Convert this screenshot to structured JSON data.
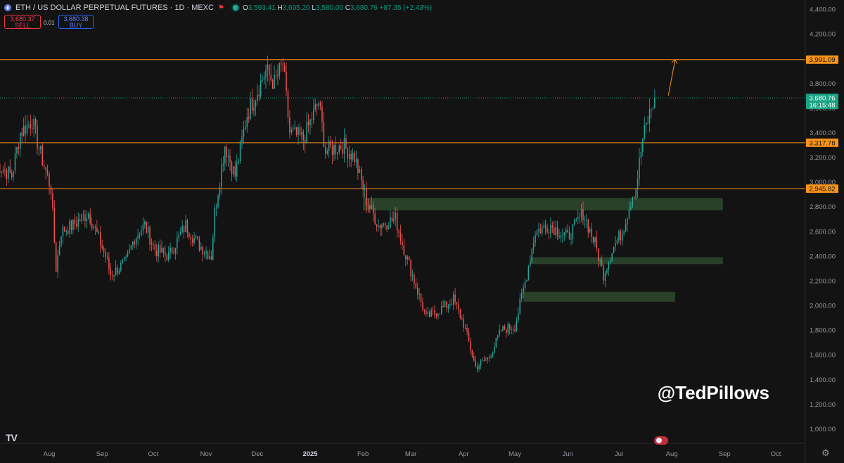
{
  "header": {
    "symbol": "ETH / US DOLLAR PERPETUAL FUTURES · 1D · MEXC",
    "ohlc": {
      "o_label": "O",
      "o": "3,593.41",
      "h_label": "H",
      "h": "3,695.20",
      "l_label": "L",
      "l": "3,580.00",
      "c_label": "C",
      "c": "3,680.76",
      "change": "+87.35 (+2.43%)"
    },
    "sell_price": "3,680.37",
    "sell_label": "SELL",
    "spread": "0.01",
    "buy_price": "3,680.38",
    "buy_label": "BUY"
  },
  "watermark": "@TedPillows",
  "tv_logo": "TV",
  "colors": {
    "up": "#26a69a",
    "down": "#ef5350",
    "hline": "#f7931a",
    "zone": "#2d4a2d",
    "price_badge": "#1aa383",
    "level_badge": "#f7931a"
  },
  "chart_data": {
    "type": "candlestick",
    "timeframe": "1D",
    "ylim": [
      900,
      4450
    ],
    "y_ticks": [
      "4,400.00",
      "4,200.00",
      "4,000.00",
      "3,800.00",
      "3,600.00",
      "3,400.00",
      "3,200.00",
      "3,000.00",
      "2,800.00",
      "2,600.00",
      "2,400.00",
      "2,200.00",
      "2,000.00",
      "1,800.00",
      "1,600.00",
      "1,400.00",
      "1,200.00",
      "1,000.00"
    ],
    "x_ticks": [
      "Aug",
      "Sep",
      "Oct",
      "Nov",
      "Dec",
      "2025",
      "Feb",
      "Mar",
      "Apr",
      "May",
      "Jun",
      "Jul",
      "Aug",
      "Sep",
      "Oct"
    ],
    "horizontal_levels": [
      {
        "label": "3,991.09",
        "value": 3991.09
      },
      {
        "label": "3,317.78",
        "value": 3317.78
      },
      {
        "label": "2,945.82",
        "value": 2945.82
      }
    ],
    "current_price": {
      "label": "3,680.76",
      "countdown": "16:15:48",
      "value": 3680.76
    },
    "zones": [
      {
        "from": "2025-02-01",
        "to": "2025-08-31",
        "low": 2770,
        "high": 2870
      },
      {
        "from": "2025-05-10",
        "to": "2025-08-31",
        "low": 2335,
        "high": 2390
      },
      {
        "from": "2025-05-06",
        "to": "2025-08-03",
        "low": 2030,
        "high": 2110
      }
    ],
    "projection": {
      "from": {
        "date": "2025-07-30",
        "price": 3700
      },
      "to": {
        "date": "2025-08-03",
        "price": 3991
      }
    },
    "anchors": [
      [
        "2024-07-01",
        3150
      ],
      [
        "2024-07-10",
        3050
      ],
      [
        "2024-07-15",
        3400
      ],
      [
        "2024-07-22",
        3500
      ],
      [
        "2024-07-26",
        3270
      ],
      [
        "2024-08-02",
        2950
      ],
      [
        "2024-08-05",
        2300
      ],
      [
        "2024-08-08",
        2600
      ],
      [
        "2024-08-15",
        2650
      ],
      [
        "2024-08-24",
        2750
      ],
      [
        "2024-09-03",
        2400
      ],
      [
        "2024-09-06",
        2250
      ],
      [
        "2024-09-15",
        2350
      ],
      [
        "2024-09-20",
        2550
      ],
      [
        "2024-09-26",
        2650
      ],
      [
        "2024-10-02",
        2450
      ],
      [
        "2024-10-10",
        2400
      ],
      [
        "2024-10-20",
        2650
      ],
      [
        "2024-10-27",
        2500
      ],
      [
        "2024-11-04",
        2400
      ],
      [
        "2024-11-06",
        2750
      ],
      [
        "2024-11-12",
        3300
      ],
      [
        "2024-11-18",
        3050
      ],
      [
        "2024-11-25",
        3550
      ],
      [
        "2024-12-06",
        3900
      ],
      [
        "2024-12-11",
        3800
      ],
      [
        "2024-12-16",
        3950
      ],
      [
        "2024-12-20",
        3400
      ],
      [
        "2024-12-28",
        3350
      ],
      [
        "2025-01-06",
        3650
      ],
      [
        "2025-01-10",
        3250
      ],
      [
        "2025-01-20",
        3300
      ],
      [
        "2025-01-27",
        3200
      ],
      [
        "2025-02-03",
        2850
      ],
      [
        "2025-02-10",
        2650
      ],
      [
        "2025-02-20",
        2700
      ],
      [
        "2025-02-24",
        2500
      ],
      [
        "2025-03-03",
        2200
      ],
      [
        "2025-03-10",
        1900
      ],
      [
        "2025-03-22",
        2000
      ],
      [
        "2025-03-26",
        2050
      ],
      [
        "2025-04-01",
        1850
      ],
      [
        "2025-04-08",
        1500
      ],
      [
        "2025-04-16",
        1580
      ],
      [
        "2025-04-23",
        1800
      ],
      [
        "2025-05-01",
        1830
      ],
      [
        "2025-05-08",
        2250
      ],
      [
        "2025-05-13",
        2600
      ],
      [
        "2025-05-22",
        2650
      ],
      [
        "2025-06-01",
        2550
      ],
      [
        "2025-06-10",
        2750
      ],
      [
        "2025-06-17",
        2500
      ],
      [
        "2025-06-22",
        2250
      ],
      [
        "2025-06-27",
        2450
      ],
      [
        "2025-07-03",
        2600
      ],
      [
        "2025-07-09",
        2900
      ],
      [
        "2025-07-11",
        2950
      ],
      [
        "2025-07-15",
        3350
      ],
      [
        "2025-07-20",
        3600
      ],
      [
        "2025-07-22",
        3680
      ]
    ]
  }
}
